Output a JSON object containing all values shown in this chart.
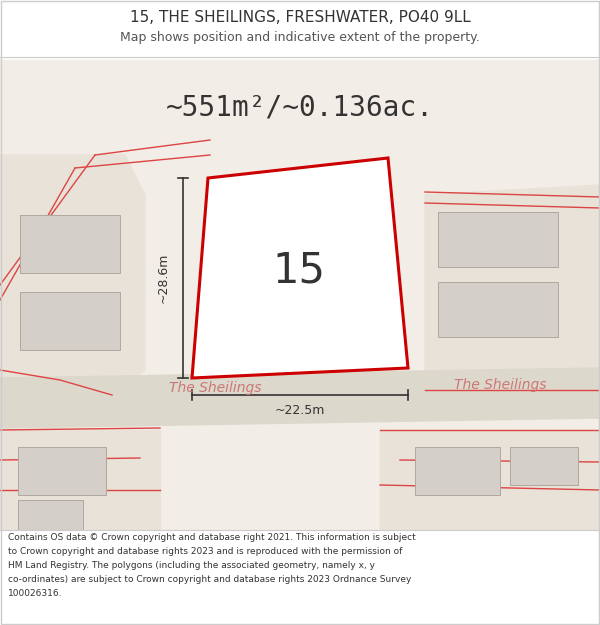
{
  "title": "15, THE SHEILINGS, FRESHWATER, PO40 9LL",
  "subtitle": "Map shows position and indicative extent of the property.",
  "area_text": "~551m²/~0.136ac.",
  "label_15": "15",
  "dim_height": "~28.6m",
  "dim_width": "~22.5m",
  "street_name_left": "The Sheilings",
  "street_name_right": "The Sheilings",
  "footer_lines": [
    "Contains OS data © Crown copyright and database right 2021. This information is subject",
    "to Crown copyright and database rights 2023 and is reproduced with the permission of",
    "HM Land Registry. The polygons (including the associated geometry, namely x, y",
    "co-ordinates) are subject to Crown copyright and database rights 2023 Ordnance Survey",
    "100026316."
  ],
  "bg_color": "#fafaf8",
  "map_bg": "#f2ede6",
  "land_bg": "#e8e2d8",
  "road_fill": "#ddd8cc",
  "plot_outline_color": "#cc0000",
  "plot_fill_color": "#ffffff",
  "building_fill": "#d4cfc8",
  "building_outline": "#b0a8a0",
  "road_line_color": "#dd4444",
  "dim_line_color": "#333333",
  "street_text_color": "#cc7777",
  "title_color": "#333333",
  "subtitle_color": "#555555",
  "footer_color": "#333333",
  "separator_color": "#cccccc"
}
